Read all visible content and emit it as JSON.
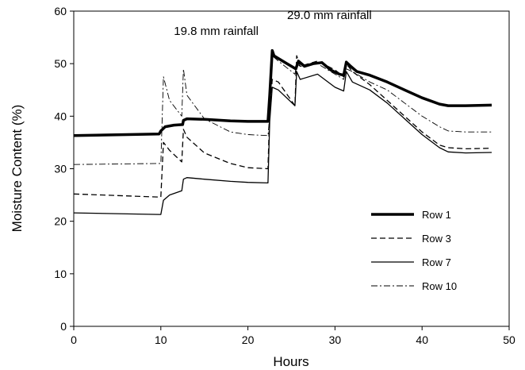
{
  "chart_data": {
    "type": "line",
    "title": "",
    "xlabel": "Hours",
    "ylabel": "Moisture Content (%)",
    "xlim": [
      0,
      50
    ],
    "ylim": [
      0,
      60
    ],
    "xticks": [
      0,
      10,
      20,
      30,
      40,
      50
    ],
    "yticks": [
      0,
      10,
      20,
      30,
      40,
      50,
      60
    ],
    "grid": false,
    "legend_position": "right",
    "annotations": [
      {
        "text": "19.8  mm rainfall",
        "x": 11.5,
        "y": 55.5
      },
      {
        "text": "29.0  mm rainfall",
        "x": 24.5,
        "y": 58.5
      }
    ],
    "series": [
      {
        "name": "Row 1",
        "style": "thick-solid",
        "x": [
          0,
          9.8,
          10.0,
          10.5,
          11.5,
          12.5,
          12.6,
          13.0,
          15.0,
          18.0,
          20.0,
          22.3,
          22.5,
          22.8,
          23.0,
          23.5,
          24.5,
          25.5,
          25.8,
          26.5,
          27.5,
          28.5,
          29.5,
          30.5,
          31.0,
          31.3,
          31.8,
          32.5,
          34.0,
          36.0,
          38.0,
          40.0,
          42.0,
          43.0,
          45.0,
          48.0
        ],
        "values": [
          36.3,
          36.6,
          37.2,
          38.0,
          38.3,
          38.4,
          39.2,
          39.5,
          39.4,
          39.1,
          39.0,
          39.0,
          44.0,
          52.5,
          51.5,
          51.0,
          50.0,
          49.0,
          50.5,
          49.5,
          50.0,
          50.2,
          48.8,
          48.0,
          47.8,
          50.3,
          49.5,
          48.5,
          47.8,
          46.5,
          45.0,
          43.5,
          42.3,
          42.0,
          42.0,
          42.1
        ]
      },
      {
        "name": "Row 3",
        "style": "dashed",
        "x": [
          0,
          9.8,
          10.0,
          10.3,
          11.0,
          12.4,
          12.6,
          13.0,
          15.0,
          18.0,
          20.0,
          22.3,
          22.5,
          22.8,
          23.5,
          25.4,
          25.6,
          26.0,
          28.0,
          30.0,
          31.0,
          31.3,
          32.0,
          34.0,
          36.0,
          38.0,
          40.0,
          42.0,
          43.0,
          45.0,
          48.0
        ],
        "values": [
          25.2,
          24.6,
          24.6,
          35.0,
          33.5,
          31.3,
          37.5,
          36.0,
          33.0,
          31.0,
          30.2,
          30.0,
          41.0,
          47.0,
          46.5,
          42.0,
          51.5,
          49.5,
          50.5,
          48.8,
          47.5,
          50.0,
          48.5,
          46.0,
          43.0,
          40.0,
          37.0,
          34.5,
          34.0,
          33.8,
          33.9
        ]
      },
      {
        "name": "Row 7",
        "style": "solid",
        "x": [
          0,
          9.8,
          10.0,
          10.3,
          11.0,
          12.4,
          12.6,
          13.0,
          15.0,
          18.0,
          20.0,
          22.3,
          22.5,
          22.8,
          23.5,
          25.4,
          25.6,
          26.0,
          28.0,
          30.0,
          31.0,
          31.3,
          32.0,
          34.0,
          36.0,
          38.0,
          40.0,
          42.0,
          43.0,
          45.0,
          48.0
        ],
        "values": [
          21.6,
          21.3,
          21.3,
          24.0,
          25.0,
          25.8,
          28.0,
          28.3,
          28.0,
          27.6,
          27.4,
          27.3,
          39.0,
          45.5,
          45.0,
          42.0,
          48.5,
          47.0,
          48.0,
          45.5,
          44.8,
          48.5,
          46.5,
          45.0,
          42.5,
          39.5,
          36.5,
          34.0,
          33.2,
          33.0,
          33.1
        ]
      },
      {
        "name": "Row 10",
        "style": "dash-dot",
        "x": [
          0,
          9.8,
          10.0,
          10.3,
          11.0,
          12.4,
          12.6,
          13.0,
          15.0,
          18.0,
          20.0,
          22.3,
          22.5,
          22.8,
          23.5,
          25.4,
          25.6,
          26.0,
          28.0,
          30.0,
          31.0,
          31.3,
          32.0,
          34.0,
          36.0,
          38.0,
          40.0,
          42.0,
          43.0,
          45.0,
          48.0
        ],
        "values": [
          30.8,
          31.0,
          31.0,
          47.5,
          43.0,
          40.0,
          49.0,
          44.0,
          39.5,
          37.0,
          36.5,
          36.3,
          40.0,
          51.5,
          50.5,
          48.0,
          50.0,
          49.5,
          50.0,
          48.0,
          47.0,
          49.0,
          48.5,
          46.5,
          45.0,
          42.5,
          40.0,
          38.0,
          37.2,
          37.0,
          37.0
        ]
      }
    ]
  }
}
